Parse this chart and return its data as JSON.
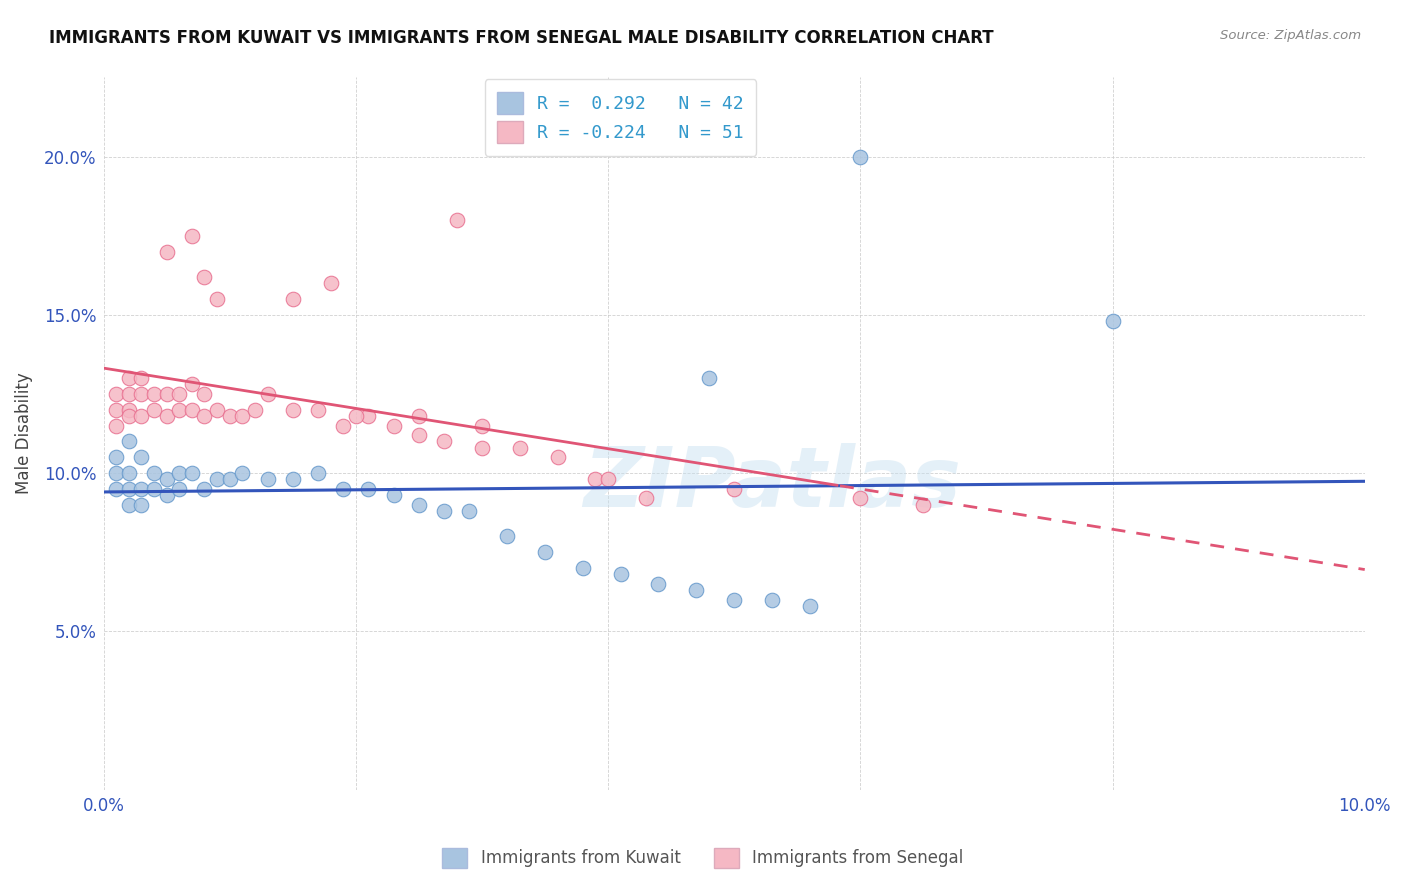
{
  "title": "IMMIGRANTS FROM KUWAIT VS IMMIGRANTS FROM SENEGAL MALE DISABILITY CORRELATION CHART",
  "source": "Source: ZipAtlas.com",
  "ylabel_label": "Male Disability",
  "x_min": 0.0,
  "x_max": 0.1,
  "y_min": 0.0,
  "y_max": 0.225,
  "x_tick_vals": [
    0.0,
    0.02,
    0.04,
    0.06,
    0.08,
    0.1
  ],
  "x_tick_labels": [
    "0.0%",
    "",
    "",
    "",
    "",
    "10.0%"
  ],
  "y_tick_vals": [
    0.0,
    0.05,
    0.1,
    0.15,
    0.2
  ],
  "y_tick_labels": [
    "",
    "5.0%",
    "10.0%",
    "15.0%",
    "20.0%"
  ],
  "kuwait_color": "#a8c4e0",
  "kuwait_edge": "#6699cc",
  "senegal_color": "#f5b8c4",
  "senegal_edge": "#e87090",
  "kuwait_line_color": "#3355bb",
  "senegal_line_color": "#e05575",
  "kuwait_R": "0.292",
  "kuwait_N": "42",
  "senegal_R": "-0.224",
  "senegal_N": "51",
  "legend_kuwait_label": "Immigrants from Kuwait",
  "legend_senegal_label": "Immigrants from Senegal",
  "watermark": "ZIPatlas",
  "kuwait_x": [
    0.001,
    0.001,
    0.001,
    0.002,
    0.002,
    0.002,
    0.002,
    0.003,
    0.003,
    0.003,
    0.004,
    0.004,
    0.005,
    0.005,
    0.006,
    0.006,
    0.007,
    0.008,
    0.009,
    0.01,
    0.011,
    0.013,
    0.015,
    0.017,
    0.019,
    0.021,
    0.023,
    0.025,
    0.027,
    0.029,
    0.032,
    0.035,
    0.038,
    0.041,
    0.044,
    0.047,
    0.05,
    0.053,
    0.056,
    0.048,
    0.06,
    0.08
  ],
  "kuwait_y": [
    0.1,
    0.105,
    0.095,
    0.11,
    0.1,
    0.095,
    0.09,
    0.105,
    0.095,
    0.09,
    0.1,
    0.095,
    0.098,
    0.093,
    0.1,
    0.095,
    0.1,
    0.095,
    0.098,
    0.098,
    0.1,
    0.098,
    0.098,
    0.1,
    0.095,
    0.095,
    0.093,
    0.09,
    0.088,
    0.088,
    0.08,
    0.075,
    0.07,
    0.068,
    0.065,
    0.063,
    0.06,
    0.06,
    0.058,
    0.13,
    0.2,
    0.148
  ],
  "senegal_x": [
    0.001,
    0.001,
    0.001,
    0.002,
    0.002,
    0.002,
    0.002,
    0.003,
    0.003,
    0.003,
    0.004,
    0.004,
    0.005,
    0.005,
    0.006,
    0.006,
    0.007,
    0.007,
    0.008,
    0.008,
    0.009,
    0.01,
    0.011,
    0.012,
    0.013,
    0.015,
    0.017,
    0.019,
    0.021,
    0.023,
    0.025,
    0.027,
    0.03,
    0.033,
    0.036,
    0.039,
    0.007,
    0.008,
    0.009,
    0.015,
    0.018,
    0.043,
    0.06,
    0.065,
    0.005,
    0.02,
    0.025,
    0.028,
    0.03,
    0.04,
    0.05
  ],
  "senegal_y": [
    0.115,
    0.12,
    0.125,
    0.13,
    0.12,
    0.118,
    0.125,
    0.13,
    0.125,
    0.118,
    0.125,
    0.12,
    0.118,
    0.125,
    0.12,
    0.125,
    0.128,
    0.12,
    0.125,
    0.118,
    0.12,
    0.118,
    0.118,
    0.12,
    0.125,
    0.12,
    0.12,
    0.115,
    0.118,
    0.115,
    0.112,
    0.11,
    0.108,
    0.108,
    0.105,
    0.098,
    0.175,
    0.162,
    0.155,
    0.155,
    0.16,
    0.092,
    0.092,
    0.09,
    0.17,
    0.118,
    0.118,
    0.18,
    0.115,
    0.098,
    0.095
  ]
}
